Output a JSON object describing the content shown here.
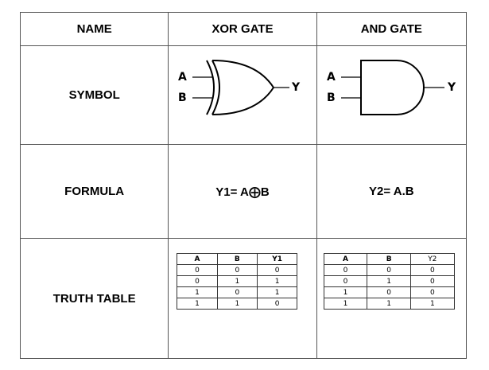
{
  "headers": {
    "name": "NAME",
    "xor": "XOR GATE",
    "and": "AND GATE"
  },
  "rows": {
    "symbol": "SYMBOL",
    "formula": "FORMULA",
    "truth_table": "TRUTH TABLE"
  },
  "symbols": {
    "xor": {
      "input_a": "A",
      "input_b": "B",
      "output": "Y"
    },
    "and": {
      "input_a": "A",
      "input_b": "B",
      "output": "Y"
    }
  },
  "formulas": {
    "xor": "Y1= A⨁B",
    "and": "Y2= A.B"
  },
  "truth_tables": {
    "xor": {
      "columns": [
        "A",
        "B",
        "Y1"
      ],
      "rows": [
        [
          "0",
          "0",
          "0"
        ],
        [
          "0",
          "1",
          "1"
        ],
        [
          "1",
          "0",
          "1"
        ],
        [
          "1",
          "1",
          "0"
        ]
      ]
    },
    "and": {
      "columns": [
        "A",
        "B",
        "Y2"
      ],
      "rows": [
        [
          "0",
          "0",
          "0"
        ],
        [
          "0",
          "1",
          "0"
        ],
        [
          "1",
          "0",
          "0"
        ],
        [
          "1",
          "1",
          "1"
        ]
      ]
    }
  }
}
